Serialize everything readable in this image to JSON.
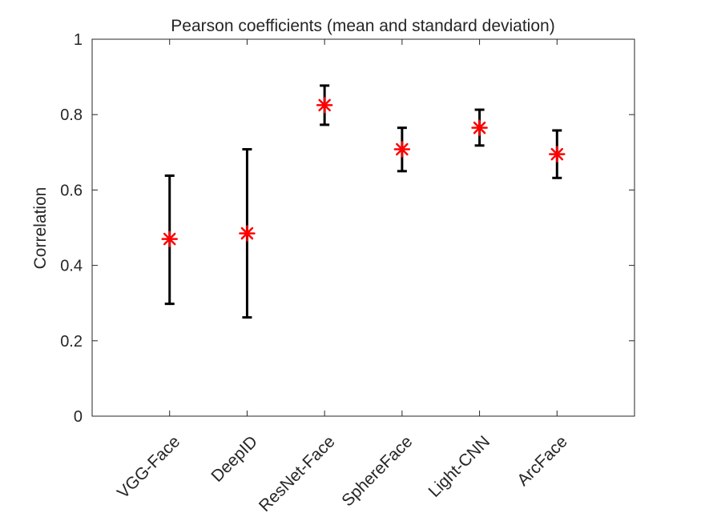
{
  "chart_data": {
    "type": "scatter",
    "title": "Pearson coefficients (mean and standard deviation)",
    "xlabel": "",
    "ylabel": "Correlation",
    "ylim": [
      0,
      1
    ],
    "yticks": [
      0,
      0.2,
      0.4,
      0.6,
      0.8,
      1
    ],
    "ytick_labels": [
      "0",
      "0.2",
      "0.4",
      "0.6",
      "0.8",
      "1"
    ],
    "categories": [
      "VGG-Face",
      "DeepID",
      "ResNet-Face",
      "SphereFace",
      "Light-CNN",
      "ArcFace"
    ],
    "series": [
      {
        "name": "mean",
        "values": [
          0.47,
          0.485,
          0.825,
          0.708,
          0.765,
          0.695
        ],
        "err_lower": [
          0.298,
          0.262,
          0.773,
          0.65,
          0.718,
          0.632
        ],
        "err_upper": [
          0.638,
          0.708,
          0.877,
          0.765,
          0.813,
          0.758
        ]
      }
    ],
    "marker_color": "#ff0000",
    "errorbar_color": "#000000",
    "grid": false
  }
}
